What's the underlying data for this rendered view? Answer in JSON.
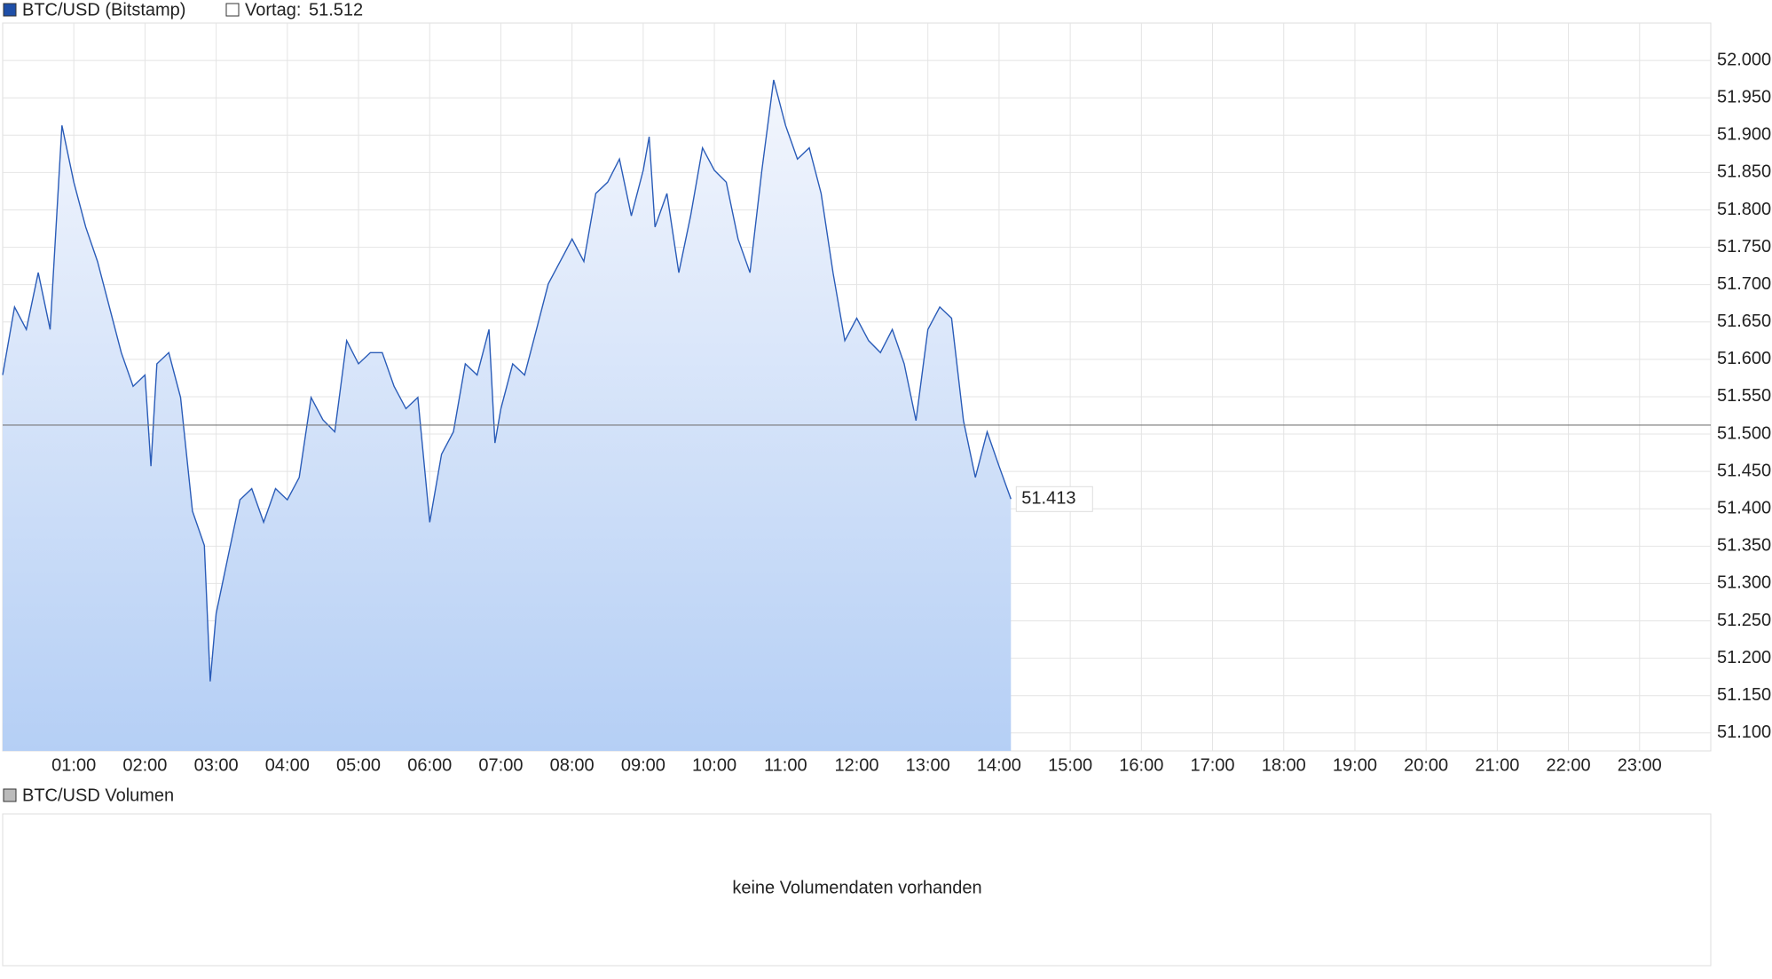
{
  "chart_data": {
    "type": "line",
    "series": [
      {
        "name": "BTC/USD (Bitstamp)",
        "color": "#2a5cb8",
        "x": [
          "00:00",
          "00:10",
          "00:20",
          "00:30",
          "00:40",
          "00:50",
          "01:00",
          "01:10",
          "01:20",
          "01:30",
          "01:40",
          "01:50",
          "02:00",
          "02:05",
          "02:10",
          "02:20",
          "02:30",
          "02:40",
          "02:50",
          "02:55",
          "03:00",
          "03:10",
          "03:20",
          "03:30",
          "03:40",
          "03:50",
          "04:00",
          "04:10",
          "04:20",
          "04:30",
          "04:40",
          "04:50",
          "05:00",
          "05:10",
          "05:20",
          "05:30",
          "05:40",
          "05:50",
          "06:00",
          "06:10",
          "06:20",
          "06:30",
          "06:40",
          "06:50",
          "06:55",
          "07:00",
          "07:10",
          "07:20",
          "07:30",
          "07:40",
          "07:50",
          "08:00",
          "08:10",
          "08:20",
          "08:30",
          "08:40",
          "08:50",
          "09:00",
          "09:05",
          "09:10",
          "09:20",
          "09:30",
          "09:40",
          "09:50",
          "10:00",
          "10:10",
          "10:20",
          "10:30",
          "10:40",
          "10:50",
          "11:00",
          "11:10",
          "11:20",
          "11:30",
          "11:40",
          "11:50",
          "12:00",
          "12:10",
          "12:20",
          "12:30",
          "12:40",
          "12:50",
          "13:00",
          "13:10",
          "13:20",
          "13:30",
          "13:40",
          "13:50",
          "14:00",
          "14:10"
        ],
        "values": [
          51579,
          51670,
          51640,
          51716,
          51640,
          51913,
          51837,
          51777,
          51731,
          51670,
          51609,
          51564,
          51579,
          51457,
          51594,
          51609,
          51549,
          51397,
          51351,
          51169,
          51260,
          51336,
          51412,
          51427,
          51382,
          51427,
          51412,
          51442,
          51549,
          51519,
          51503,
          51625,
          51594,
          51609,
          51609,
          51564,
          51534,
          51549,
          51382,
          51473,
          51503,
          51594,
          51579,
          51640,
          51488,
          51534,
          51594,
          51579,
          51640,
          51701,
          51731,
          51761,
          51731,
          51822,
          51837,
          51868,
          51792,
          51853,
          51898,
          51777,
          51822,
          51716,
          51792,
          51883,
          51853,
          51837,
          51761,
          51716,
          51853,
          51974,
          51913,
          51868,
          51883,
          51822,
          51716,
          51625,
          51655,
          51625,
          51609,
          51640,
          51594,
          51518,
          51640,
          51670,
          51655,
          51518,
          51442,
          51503,
          51457,
          51413
        ],
        "last_value_label": "51.413"
      }
    ],
    "reference": {
      "label": "Vortag:",
      "value": 51512,
      "value_label": "51.512"
    },
    "xlim": [
      "00:00",
      "24:00"
    ],
    "xticks": [
      "01:00",
      "02:00",
      "03:00",
      "04:00",
      "05:00",
      "06:00",
      "07:00",
      "08:00",
      "09:00",
      "10:00",
      "11:00",
      "12:00",
      "13:00",
      "14:00",
      "15:00",
      "16:00",
      "17:00",
      "18:00",
      "19:00",
      "20:00",
      "21:00",
      "22:00",
      "23:00"
    ],
    "ylim": [
      51076,
      52050
    ],
    "yticks": [
      {
        "value": 51100,
        "label": "51.100"
      },
      {
        "value": 51150,
        "label": "51.150"
      },
      {
        "value": 51200,
        "label": "51.200"
      },
      {
        "value": 51250,
        "label": "51.250"
      },
      {
        "value": 51300,
        "label": "51.300"
      },
      {
        "value": 51350,
        "label": "51.350"
      },
      {
        "value": 51400,
        "label": "51.400"
      },
      {
        "value": 51450,
        "label": "51.450"
      },
      {
        "value": 51500,
        "label": "51.500"
      },
      {
        "value": 51550,
        "label": "51.550"
      },
      {
        "value": 51600,
        "label": "51.600"
      },
      {
        "value": 51650,
        "label": "51.650"
      },
      {
        "value": 51700,
        "label": "51.700"
      },
      {
        "value": 51750,
        "label": "51.750"
      },
      {
        "value": 51800,
        "label": "51.800"
      },
      {
        "value": 51850,
        "label": "51.850"
      },
      {
        "value": 51900,
        "label": "51.900"
      },
      {
        "value": 51950,
        "label": "51.950"
      },
      {
        "value": 52000,
        "label": "52.000"
      }
    ],
    "grid": true
  },
  "volume_panel": {
    "title": "BTC/USD Volumen",
    "message": "keine Volumendaten vorhanden"
  }
}
